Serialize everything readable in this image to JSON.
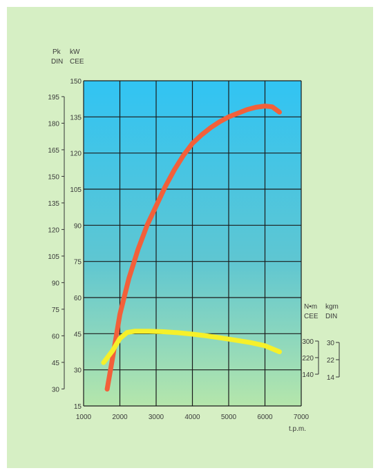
{
  "chart_data": {
    "type": "line",
    "xlabel": "t.p.m.",
    "xlim": [
      1000,
      7000
    ],
    "x_ticks": [
      1000,
      2000,
      3000,
      4000,
      5000,
      6000,
      7000
    ],
    "power_axis": {
      "ylim_kw": [
        15,
        150
      ],
      "kw_ticks": [
        15,
        30,
        45,
        60,
        75,
        90,
        105,
        120,
        135,
        150
      ],
      "pk_ticks": [
        30,
        45,
        60,
        75,
        90,
        105,
        120,
        135,
        150,
        165,
        180,
        195
      ],
      "header_line1": [
        "Pk",
        "kW"
      ],
      "header_line2": [
        "DIN",
        "CEE"
      ]
    },
    "torque_axis": {
      "header_line1": [
        "N•m",
        "kgm"
      ],
      "header_line2": [
        "CEE",
        "DIN"
      ],
      "nm_ticks": [
        300,
        220,
        140
      ],
      "kgm_ticks": [
        30,
        22,
        14
      ]
    },
    "series": [
      {
        "color": "#f2603a",
        "x": [
          1650,
          1800,
          2000,
          2250,
          2500,
          2750,
          3000,
          3250,
          3500,
          3750,
          4000,
          4250,
          4500,
          4750,
          5000,
          5250,
          5500,
          5750,
          6000,
          6200,
          6400
        ],
        "y": [
          22,
          35,
          53,
          68,
          80,
          90,
          98,
          106,
          113,
          119,
          124,
          127.5,
          130.5,
          133,
          135,
          136.5,
          138,
          139,
          139.5,
          139.2,
          137
        ]
      },
      {
        "color": "#f6f02a",
        "x": [
          1550,
          1800,
          2000,
          2200,
          2400,
          2800,
          3200,
          3600,
          4000,
          4400,
          4800,
          5200,
          5600,
          6000,
          6400
        ],
        "y": [
          33,
          38,
          43,
          45.5,
          46,
          46,
          45.8,
          45.4,
          44.8,
          44.1,
          43.2,
          42.3,
          41.3,
          40,
          37.5
        ]
      }
    ],
    "grid": true
  }
}
